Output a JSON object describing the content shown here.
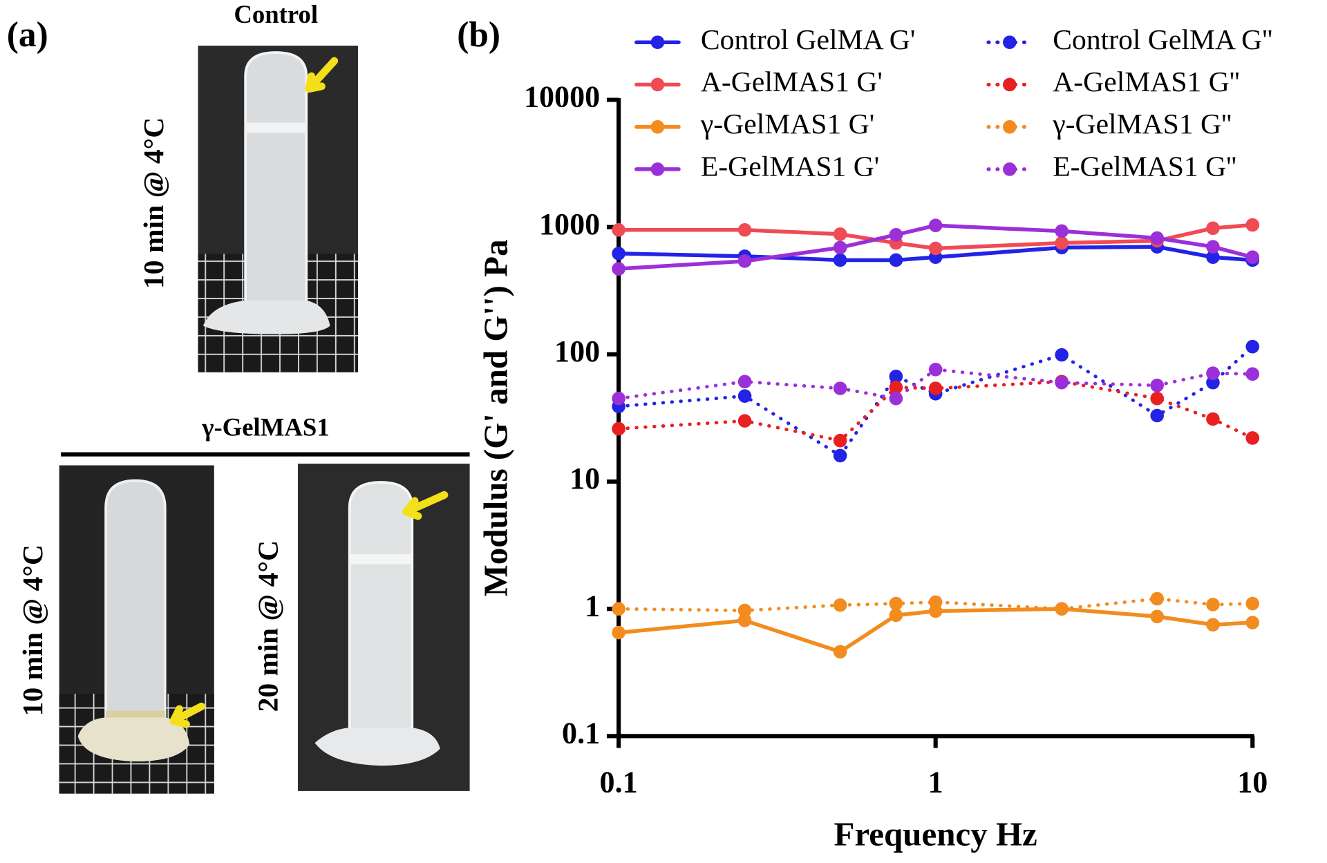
{
  "panel_a": {
    "label": "(a)",
    "control_title": "Control",
    "control_time": "10 min @ 4°C",
    "group_title": "γ-GelMAS1",
    "group_times": [
      "10 min @ 4°C",
      "20 min @ 4°C"
    ]
  },
  "chart_data": {
    "type": "line",
    "panel_label": "(b)",
    "x_label": "Frequency Hz",
    "y_label": "Modulus (G' and G'') Pa",
    "xscale": "log",
    "yscale": "log",
    "x": [
      0.1,
      0.25,
      0.5,
      0.75,
      1,
      2.5,
      5,
      7.5,
      10
    ],
    "xlim": [
      0.1,
      10
    ],
    "xticks": [
      0.1,
      1,
      10
    ],
    "ylim": [
      0.1,
      10000
    ],
    "yticks": [
      0.1,
      1,
      10,
      100,
      1000,
      10000
    ],
    "series": [
      {
        "name": "Control GelMA G'",
        "color": "#2323e6",
        "line_style": "solid",
        "values": [
          620,
          590,
          550,
          550,
          580,
          690,
          700,
          580,
          550
        ]
      },
      {
        "name": "A-GelMAS1 G'",
        "color": "#f04b55",
        "line_style": "solid",
        "values": [
          950,
          950,
          880,
          750,
          680,
          750,
          780,
          980,
          1040
        ]
      },
      {
        "name": "γ-GelMAS1 G'",
        "color": "#f28c1e",
        "line_style": "solid",
        "values": [
          0.65,
          0.81,
          0.46,
          0.89,
          0.96,
          1.0,
          0.87,
          0.75,
          0.78
        ]
      },
      {
        "name": "E-GelMAS1 G'",
        "color": "#9b30d9",
        "line_style": "solid",
        "values": [
          470,
          540,
          690,
          870,
          1030,
          930,
          820,
          700,
          580
        ]
      },
      {
        "name": "Control GelMA G''",
        "color": "#2323e6",
        "line_style": "dotted",
        "values": [
          39,
          47,
          16,
          67,
          49,
          99,
          33,
          60,
          115
        ]
      },
      {
        "name": "A-GelMAS1 G''",
        "color": "#e82020",
        "line_style": "dotted",
        "values": [
          26,
          30,
          21,
          55,
          54,
          61,
          45,
          31,
          22
        ]
      },
      {
        "name": "γ-GelMAS1 G''",
        "color": "#f28c1e",
        "line_style": "dotted",
        "values": [
          1.0,
          0.97,
          1.07,
          1.1,
          1.13,
          1.0,
          1.2,
          1.08,
          1.1
        ]
      },
      {
        "name": "E-GelMAS1 G''",
        "color": "#9b30d9",
        "line_style": "dotted",
        "values": [
          45,
          61,
          54,
          45,
          76,
          60,
          57,
          71,
          70
        ]
      }
    ]
  }
}
